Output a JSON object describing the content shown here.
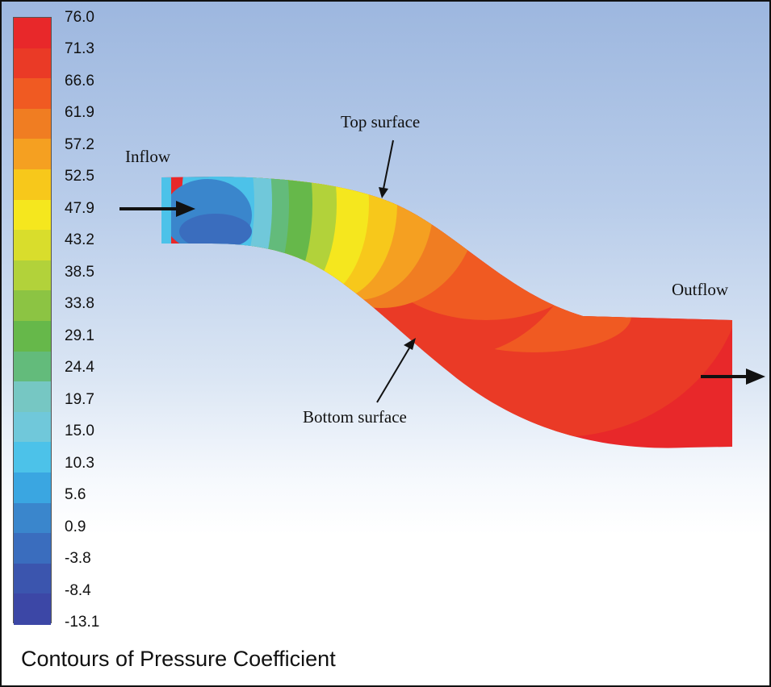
{
  "colorbar": {
    "ticks": [
      "76.0",
      "71.3",
      "66.6",
      "61.9",
      "57.2",
      "52.5",
      "47.9",
      "43.2",
      "38.5",
      "33.8",
      "29.1",
      "24.4",
      "19.7",
      "15.0",
      "10.3",
      "5.6",
      "0.9",
      "-3.8",
      "-8.4",
      "-13.1"
    ],
    "colors": [
      "#e8282a",
      "#ea3a26",
      "#f05a22",
      "#f07d22",
      "#f5a021",
      "#f7c81b",
      "#f5e71e",
      "#d9dd2c",
      "#b2d23a",
      "#8cc443",
      "#66b84a",
      "#63bb7b",
      "#76c7c3",
      "#70c8da",
      "#4cc2e9",
      "#3aa6e1",
      "#3a86cc",
      "#3a6dbe",
      "#3b55ae",
      "#3c47a6"
    ],
    "caption": "Contours of Pressure Coefficient"
  },
  "annotations": {
    "inflow": "Inflow",
    "outflow": "Outflow",
    "top_surface": "Top surface",
    "bottom_surface": "Bottom surface"
  }
}
